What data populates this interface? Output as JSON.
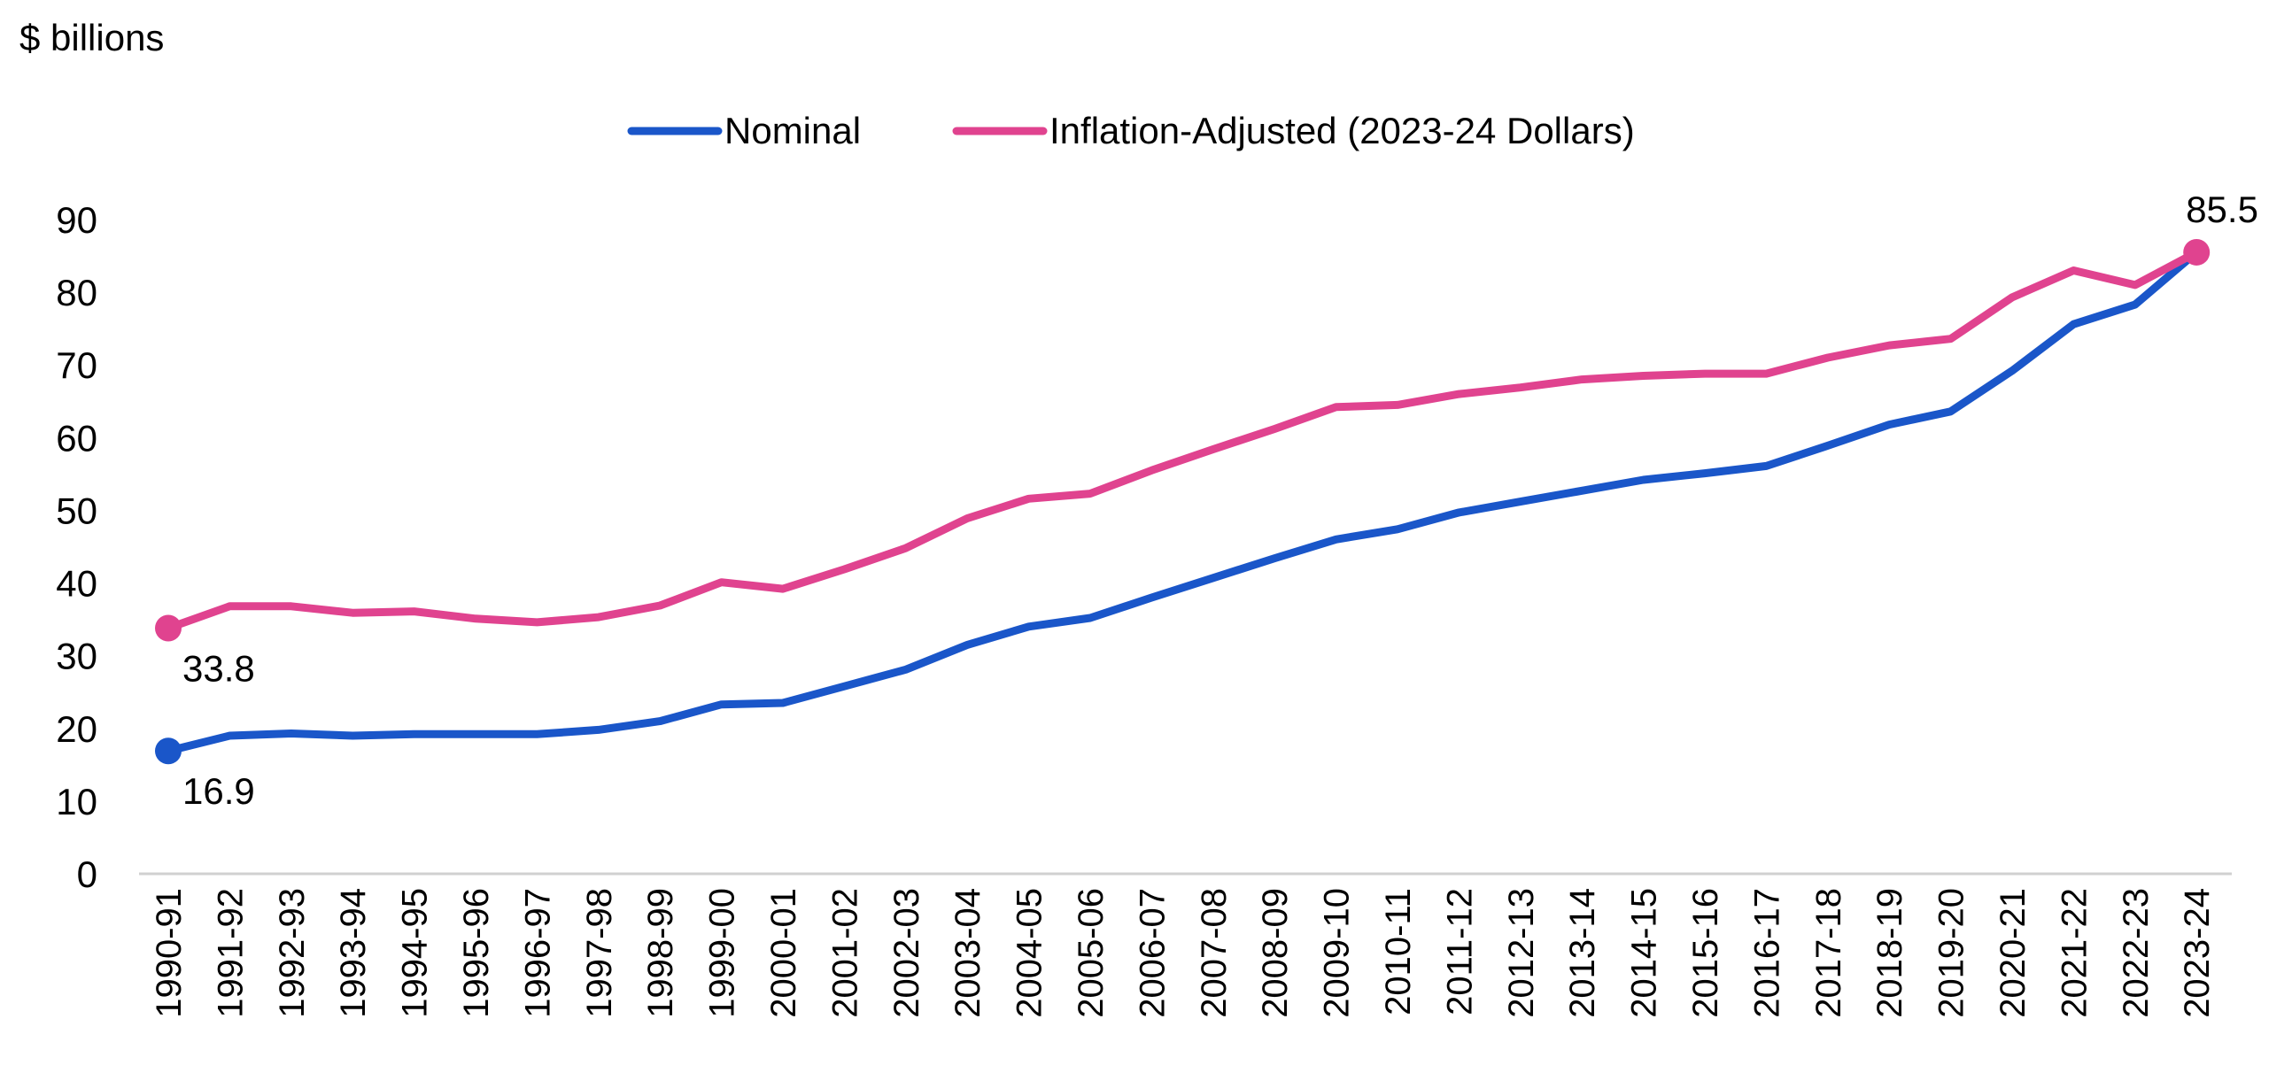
{
  "chart_data": {
    "type": "line",
    "unit_label": "$ billions",
    "title": "",
    "xlabel": "",
    "ylabel": "",
    "ylim": [
      0,
      90
    ],
    "yticks": [
      0,
      10,
      20,
      30,
      40,
      50,
      60,
      70,
      80,
      90
    ],
    "grid": false,
    "legend_position": "top-center",
    "categories": [
      "1990-91",
      "1991-92",
      "1992-93",
      "1993-94",
      "1994-95",
      "1995-96",
      "1996-97",
      "1997-98",
      "1998-99",
      "1999-00",
      "2000-01",
      "2001-02",
      "2002-03",
      "2003-04",
      "2004-05",
      "2005-06",
      "2006-07",
      "2007-08",
      "2008-09",
      "2009-10",
      "2010-11",
      "2011-12",
      "2012-13",
      "2013-14",
      "2014-15",
      "2015-16",
      "2016-17",
      "2017-18",
      "2018-19",
      "2019-20",
      "2020-21",
      "2021-22",
      "2022-23",
      "2023-24"
    ],
    "series": [
      {
        "name": "Nominal",
        "color": "#1a56c9",
        "values": [
          16.9,
          19.0,
          19.3,
          19.0,
          19.2,
          19.2,
          19.2,
          19.8,
          21.0,
          23.3,
          23.5,
          25.8,
          28.1,
          31.5,
          34.0,
          35.2,
          38.0,
          40.7,
          43.4,
          46.0,
          47.4,
          49.7,
          51.2,
          52.7,
          54.2,
          55.1,
          56.1,
          58.9,
          61.8,
          63.6,
          69.2,
          75.6,
          78.3,
          85.5
        ],
        "labels": [
          {
            "index": 0,
            "text": "16.9"
          }
        ]
      },
      {
        "name": "Inflation-Adjusted (2023-24 Dollars)",
        "color": "#e0438f",
        "values": [
          33.8,
          36.8,
          36.8,
          35.9,
          36.1,
          35.1,
          34.6,
          35.3,
          36.9,
          40.1,
          39.2,
          41.9,
          44.8,
          48.9,
          51.6,
          52.3,
          55.5,
          58.4,
          61.2,
          64.2,
          64.5,
          66.0,
          66.9,
          68.0,
          68.5,
          68.8,
          68.8,
          71.0,
          72.7,
          73.6,
          79.3,
          83.0,
          81.0,
          85.5
        ],
        "labels": [
          {
            "index": 0,
            "text": "33.8"
          },
          {
            "index": 33,
            "text": "85.5"
          }
        ]
      }
    ]
  }
}
